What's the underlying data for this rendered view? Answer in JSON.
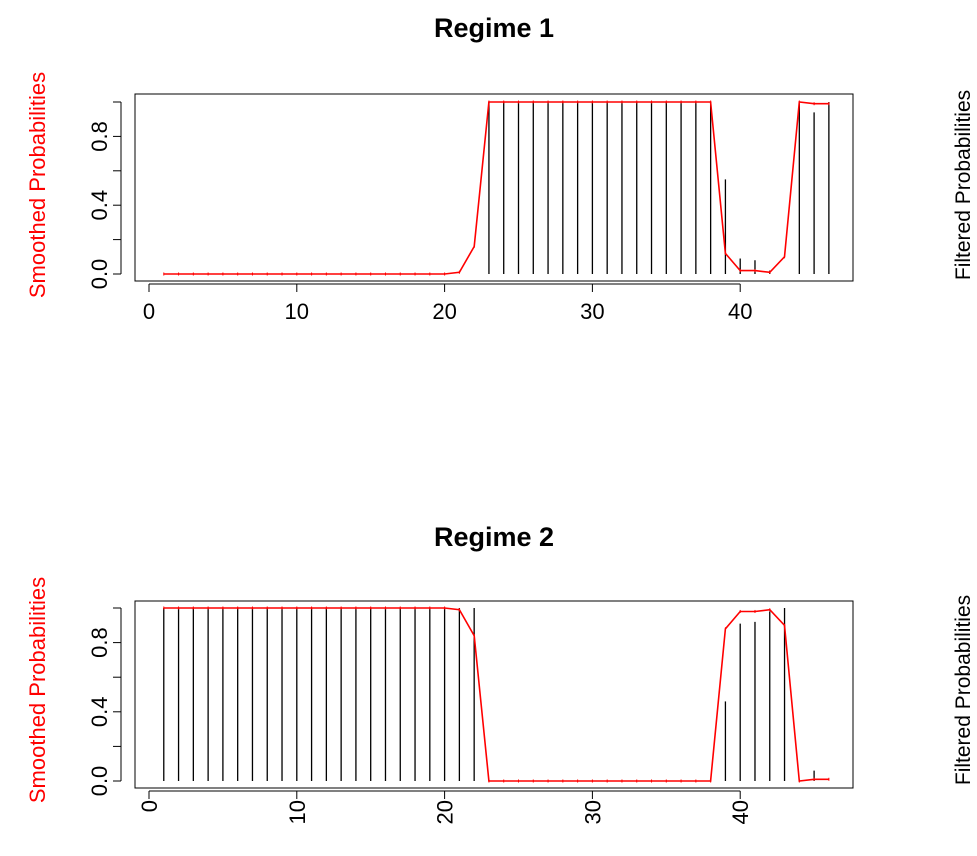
{
  "chart_data": [
    {
      "type": "bar",
      "title": "Regime 1",
      "ylabel_left": "Smoothed Probabilities",
      "ylabel_right": "Filtered Probabilities",
      "xlim": [
        0,
        47
      ],
      "ylim": [
        0,
        1
      ],
      "x_ticks": [
        "0",
        "10",
        "20",
        "30",
        "40"
      ],
      "y_ticks": [
        "0.0",
        "0.4",
        "0.8"
      ],
      "x_tick_orientation": "horizontal",
      "series": [
        {
          "name": "Filtered Probabilities",
          "style": "vertical-lines",
          "color": "#000000",
          "x": [
            1,
            2,
            3,
            4,
            5,
            6,
            7,
            8,
            9,
            10,
            11,
            12,
            13,
            14,
            15,
            16,
            17,
            18,
            19,
            20,
            21,
            22,
            23,
            24,
            25,
            26,
            27,
            28,
            29,
            30,
            31,
            32,
            33,
            34,
            35,
            36,
            37,
            38,
            39,
            40,
            41,
            42,
            43,
            44,
            45,
            46
          ],
          "values": [
            0,
            0,
            0,
            0,
            0,
            0,
            0,
            0,
            0,
            0,
            0,
            0,
            0,
            0,
            0,
            0,
            0,
            0,
            0,
            0,
            0,
            0,
            1,
            1,
            1,
            1,
            1,
            1,
            1,
            1,
            1,
            1,
            1,
            1,
            1,
            1,
            1,
            1,
            0.55,
            0.09,
            0.08,
            0.02,
            0,
            1,
            0.94,
            1
          ]
        },
        {
          "name": "Smoothed Probabilities",
          "style": "line",
          "color": "#ff0000",
          "x": [
            1,
            2,
            3,
            4,
            5,
            6,
            7,
            8,
            9,
            10,
            11,
            12,
            13,
            14,
            15,
            16,
            17,
            18,
            19,
            20,
            21,
            22,
            23,
            24,
            25,
            26,
            27,
            28,
            29,
            30,
            31,
            32,
            33,
            34,
            35,
            36,
            37,
            38,
            39,
            40,
            41,
            42,
            43,
            44,
            45,
            46
          ],
          "values": [
            0,
            0,
            0,
            0,
            0,
            0,
            0,
            0,
            0,
            0,
            0,
            0,
            0,
            0,
            0,
            0,
            0,
            0,
            0,
            0,
            0.01,
            0.16,
            1,
            1,
            1,
            1,
            1,
            1,
            1,
            1,
            1,
            1,
            1,
            1,
            1,
            1,
            1,
            1,
            0.12,
            0.02,
            0.02,
            0.01,
            0.1,
            1,
            0.99,
            0.99
          ]
        }
      ]
    },
    {
      "type": "bar",
      "title": "Regime 2",
      "ylabel_left": "Smoothed Probabilities",
      "ylabel_right": "Filtered Probabilities",
      "xlim": [
        0,
        47
      ],
      "ylim": [
        0,
        1
      ],
      "x_ticks": [
        "0",
        "10",
        "20",
        "30",
        "40"
      ],
      "y_ticks": [
        "0.0",
        "0.4",
        "0.8"
      ],
      "x_tick_orientation": "vertical",
      "series": [
        {
          "name": "Filtered Probabilities",
          "style": "vertical-lines",
          "color": "#000000",
          "x": [
            1,
            2,
            3,
            4,
            5,
            6,
            7,
            8,
            9,
            10,
            11,
            12,
            13,
            14,
            15,
            16,
            17,
            18,
            19,
            20,
            21,
            22,
            23,
            24,
            25,
            26,
            27,
            28,
            29,
            30,
            31,
            32,
            33,
            34,
            35,
            36,
            37,
            38,
            39,
            40,
            41,
            42,
            43,
            44,
            45,
            46
          ],
          "values": [
            1,
            1,
            1,
            1,
            1,
            1,
            1,
            1,
            1,
            1,
            1,
            1,
            1,
            1,
            1,
            1,
            1,
            1,
            1,
            1,
            1,
            1,
            0,
            0,
            0,
            0,
            0,
            0,
            0,
            0,
            0,
            0,
            0,
            0,
            0,
            0,
            0,
            0,
            0.46,
            0.91,
            0.92,
            0.98,
            1,
            0,
            0.06,
            0
          ]
        },
        {
          "name": "Smoothed Probabilities",
          "style": "line",
          "color": "#ff0000",
          "x": [
            1,
            2,
            3,
            4,
            5,
            6,
            7,
            8,
            9,
            10,
            11,
            12,
            13,
            14,
            15,
            16,
            17,
            18,
            19,
            20,
            21,
            22,
            23,
            24,
            25,
            26,
            27,
            28,
            29,
            30,
            31,
            32,
            33,
            34,
            35,
            36,
            37,
            38,
            39,
            40,
            41,
            42,
            43,
            44,
            45,
            46
          ],
          "values": [
            1,
            1,
            1,
            1,
            1,
            1,
            1,
            1,
            1,
            1,
            1,
            1,
            1,
            1,
            1,
            1,
            1,
            1,
            1,
            1,
            0.99,
            0.84,
            0,
            0,
            0,
            0,
            0,
            0,
            0,
            0,
            0,
            0,
            0,
            0,
            0,
            0,
            0,
            0,
            0.88,
            0.98,
            0.98,
            0.99,
            0.9,
            0,
            0.01,
            0.01
          ]
        }
      ]
    }
  ]
}
